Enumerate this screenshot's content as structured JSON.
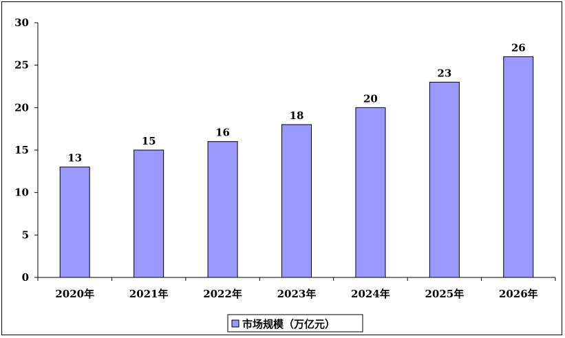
{
  "chart_data": {
    "type": "bar",
    "categories": [
      "2020年",
      "2021年",
      "2022年",
      "2023年",
      "2024年",
      "2025年",
      "2026年"
    ],
    "series": [
      {
        "name": "市场规模（万亿元）",
        "values": [
          13,
          15,
          16,
          18,
          20,
          23,
          26
        ]
      }
    ],
    "ylim": [
      0,
      30
    ],
    "yticks": [
      "0",
      "5",
      "10",
      "15",
      "20",
      "25",
      "30"
    ],
    "grid": false,
    "legend": "bottom-center",
    "colors": {
      "bar": "#9999FF",
      "bar_stroke": "#000000",
      "axis": "#000000"
    }
  }
}
